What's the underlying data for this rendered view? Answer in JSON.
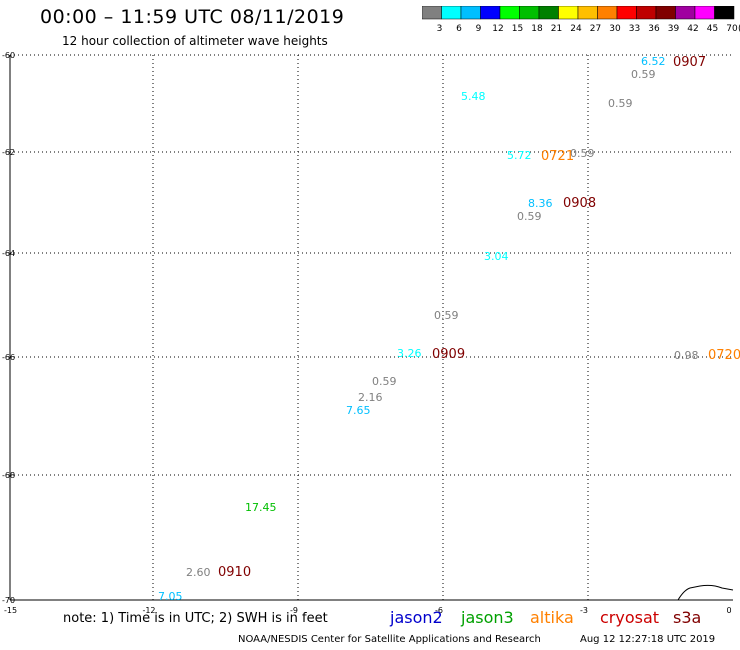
{
  "header": {
    "title": "00:00 – 11:59 UTC 08/11/2019",
    "subtitle": "12 hour collection of altimeter wave heights"
  },
  "scale": {
    "colors": [
      "#808080",
      "#00ffff",
      "#00bfff",
      "#0000ff",
      "#00ff00",
      "#00bf00",
      "#008000",
      "#ffff00",
      "#ffbf00",
      "#ff8000",
      "#ff0000",
      "#bf0000",
      "#800000",
      "#a000a0",
      "#ff00ff",
      "#000000"
    ],
    "labels": [
      "3",
      "6",
      "9",
      "12",
      "15",
      "18",
      "21",
      "24",
      "27",
      "30",
      "33",
      "36",
      "39",
      "42",
      "45",
      "70"
    ],
    "unit": "(ft)"
  },
  "axes": {
    "lat_labels": [
      "-60",
      "-62",
      "-64",
      "-66",
      "-68",
      "-70"
    ],
    "lon_labels": [
      "-15",
      "-12",
      "-9",
      "-6",
      "-3",
      "0"
    ]
  },
  "wave_labels": [
    {
      "text": "6.52",
      "color": "#00bfff"
    },
    {
      "text": "0.59",
      "color": "#808080"
    },
    {
      "text": "0.59",
      "color": "#808080"
    },
    {
      "text": "5.48",
      "color": "#00ffff"
    },
    {
      "text": "5.72",
      "color": "#00ffff"
    },
    {
      "text": "0.59",
      "color": "#808080"
    },
    {
      "text": "8.36",
      "color": "#00bfff"
    },
    {
      "text": "0.59",
      "color": "#808080"
    },
    {
      "text": "3.04",
      "color": "#00ffff"
    },
    {
      "text": "0.59",
      "color": "#808080"
    },
    {
      "text": "3.26",
      "color": "#00ffff"
    },
    {
      "text": "0.98",
      "color": "#808080"
    },
    {
      "text": "0.59",
      "color": "#808080"
    },
    {
      "text": "2.16",
      "color": "#808080"
    },
    {
      "text": "7.65",
      "color": "#00bfff"
    },
    {
      "text": "17.45",
      "color": "#00bf00"
    },
    {
      "text": "2.60",
      "color": "#808080"
    },
    {
      "text": "7.05",
      "color": "#00bfff"
    }
  ],
  "time_labels": [
    {
      "text": "0907",
      "color": "#800000"
    },
    {
      "text": "0721",
      "color": "#ff8000"
    },
    {
      "text": "0908",
      "color": "#800000"
    },
    {
      "text": "0909",
      "color": "#800000"
    },
    {
      "text": "0720",
      "color": "#ff8000"
    },
    {
      "text": "0910",
      "color": "#800000"
    }
  ],
  "footer": {
    "note": "note: 1) Time is in UTC; 2) SWH is in feet",
    "satellites": [
      {
        "name": "jason2",
        "color": "#0000cc"
      },
      {
        "name": "jason3",
        "color": "#00a000"
      },
      {
        "name": "altika",
        "color": "#ff8000"
      },
      {
        "name": "cryosat",
        "color": "#cc0000"
      },
      {
        "name": "s3a",
        "color": "#800000"
      }
    ],
    "credit": "NOAA/NESDIS Center for Satellite Applications and Research",
    "timestamp": "Aug 12 12:27:18 UTC 2019"
  }
}
